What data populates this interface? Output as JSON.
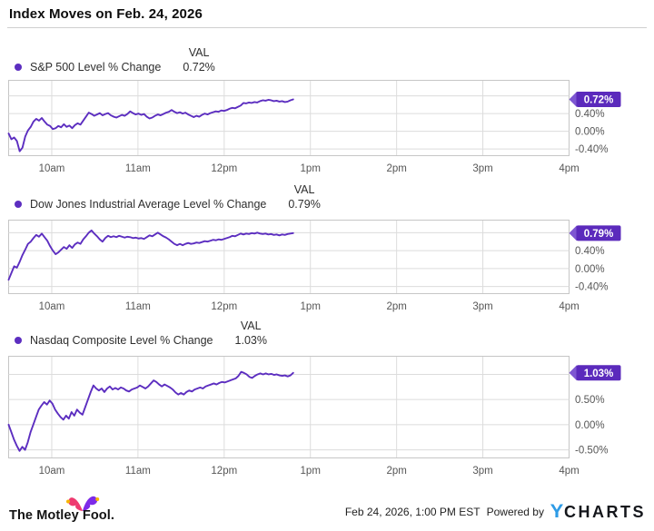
{
  "header": {
    "title": "Index Moves on Feb. 24, 2026"
  },
  "colors": {
    "line": "#5c2ec0",
    "badge_body": "#5b2abc",
    "badge_arrow": "#7e57d2",
    "badge_text": "#ffffff",
    "grid": "#dcdcdc",
    "plot_border": "#c6c6c6",
    "axis_text": "#565656",
    "legend_text": "#2e2e2e",
    "ycharts_blue": "#2e9be6",
    "fool_pink": "#ee3a70",
    "fool_purple": "#7d2ae8",
    "fool_bell_yellow": "#f7b500"
  },
  "footer": {
    "brand": "The Motley Fool.",
    "timestamp": "Feb 24, 2026, 1:00 PM EST",
    "powered_by": "Powered by",
    "ycharts_y": "Y",
    "ycharts_rest": "CHARTS"
  },
  "chart_data": [
    {
      "type": "line",
      "title": "S&P 500 Level % Change",
      "legend_val_header": "VAL",
      "value_label": "0.72%",
      "badge": "0.72%",
      "last_value": 0.72,
      "x_unit": "hour_of_day",
      "x_axis_start": 9.5,
      "x_axis_end": 16,
      "x_start": 9.5,
      "x_end": 12.8,
      "ylim": [
        -0.55,
        1.15
      ],
      "grid": true,
      "legend_position": "top-left",
      "x_ticks": [
        {
          "t": 10,
          "label": "10am"
        },
        {
          "t": 11,
          "label": "11am"
        },
        {
          "t": 12,
          "label": "12pm"
        },
        {
          "t": 13,
          "label": "1pm"
        },
        {
          "t": 14,
          "label": "2pm"
        },
        {
          "t": 15,
          "label": "3pm"
        },
        {
          "t": 16,
          "label": "4pm"
        }
      ],
      "y_gridlines": [
        {
          "v": 0.8,
          "label": "0.80%"
        },
        {
          "v": 0.4,
          "label": "0.40%"
        },
        {
          "v": 0.0,
          "label": "0.00%"
        },
        {
          "v": -0.4,
          "label": "-0.40%"
        }
      ],
      "values": [
        -0.05,
        -0.18,
        -0.14,
        -0.22,
        -0.45,
        -0.37,
        -0.12,
        0.02,
        0.1,
        0.22,
        0.28,
        0.24,
        0.3,
        0.22,
        0.15,
        0.12,
        0.05,
        0.07,
        0.12,
        0.09,
        0.16,
        0.1,
        0.13,
        0.07,
        0.14,
        0.18,
        0.15,
        0.24,
        0.33,
        0.42,
        0.39,
        0.35,
        0.38,
        0.41,
        0.36,
        0.39,
        0.41,
        0.36,
        0.33,
        0.31,
        0.34,
        0.37,
        0.35,
        0.39,
        0.45,
        0.41,
        0.38,
        0.4,
        0.37,
        0.39,
        0.33,
        0.29,
        0.31,
        0.35,
        0.38,
        0.36,
        0.39,
        0.42,
        0.44,
        0.48,
        0.44,
        0.41,
        0.43,
        0.4,
        0.42,
        0.38,
        0.35,
        0.32,
        0.35,
        0.33,
        0.37,
        0.4,
        0.38,
        0.41,
        0.43,
        0.45,
        0.44,
        0.47,
        0.46,
        0.48,
        0.51,
        0.53,
        0.52,
        0.55,
        0.58,
        0.64,
        0.63,
        0.65,
        0.64,
        0.66,
        0.65,
        0.68,
        0.7,
        0.69,
        0.71,
        0.7,
        0.68,
        0.69,
        0.67,
        0.68,
        0.66,
        0.67,
        0.7,
        0.72
      ]
    },
    {
      "type": "line",
      "title": "Dow Jones Industrial Average Level % Change",
      "legend_val_header": "VAL",
      "value_label": "0.79%",
      "badge": "0.79%",
      "last_value": 0.79,
      "x_unit": "hour_of_day",
      "x_axis_start": 9.5,
      "x_axis_end": 16,
      "x_start": 9.5,
      "x_end": 12.8,
      "ylim": [
        -0.56,
        1.08
      ],
      "grid": true,
      "legend_position": "top-left",
      "x_ticks": [
        {
          "t": 10,
          "label": "10am"
        },
        {
          "t": 11,
          "label": "11am"
        },
        {
          "t": 12,
          "label": "12pm"
        },
        {
          "t": 13,
          "label": "1pm"
        },
        {
          "t": 14,
          "label": "2pm"
        },
        {
          "t": 15,
          "label": "3pm"
        },
        {
          "t": 16,
          "label": "4pm"
        }
      ],
      "y_gridlines": [
        {
          "v": 0.8,
          "label": "0.80%"
        },
        {
          "v": 0.4,
          "label": "0.40%"
        },
        {
          "v": 0.0,
          "label": "0.00%"
        },
        {
          "v": -0.4,
          "label": "-0.40%"
        }
      ],
      "values": [
        -0.25,
        -0.1,
        0.05,
        0.02,
        0.15,
        0.3,
        0.42,
        0.55,
        0.6,
        0.68,
        0.75,
        0.71,
        0.78,
        0.7,
        0.62,
        0.5,
        0.4,
        0.32,
        0.36,
        0.42,
        0.48,
        0.44,
        0.52,
        0.46,
        0.54,
        0.58,
        0.55,
        0.65,
        0.72,
        0.8,
        0.85,
        0.78,
        0.72,
        0.65,
        0.6,
        0.68,
        0.73,
        0.7,
        0.72,
        0.7,
        0.73,
        0.71,
        0.69,
        0.71,
        0.7,
        0.68,
        0.69,
        0.67,
        0.68,
        0.66,
        0.7,
        0.74,
        0.72,
        0.76,
        0.8,
        0.76,
        0.72,
        0.69,
        0.65,
        0.6,
        0.55,
        0.52,
        0.55,
        0.52,
        0.55,
        0.57,
        0.55,
        0.56,
        0.58,
        0.57,
        0.59,
        0.61,
        0.6,
        0.62,
        0.64,
        0.63,
        0.65,
        0.64,
        0.66,
        0.68,
        0.7,
        0.73,
        0.72,
        0.75,
        0.78,
        0.76,
        0.78,
        0.77,
        0.79,
        0.78,
        0.8,
        0.78,
        0.77,
        0.78,
        0.76,
        0.77,
        0.75,
        0.76,
        0.74,
        0.76,
        0.75,
        0.77,
        0.78,
        0.79
      ]
    },
    {
      "type": "line",
      "title": "Nasdaq Composite Level % Change",
      "legend_val_header": "VAL",
      "value_label": "1.03%",
      "badge": "1.03%",
      "last_value": 1.03,
      "x_unit": "hour_of_day",
      "x_axis_start": 9.5,
      "x_axis_end": 16,
      "x_start": 9.5,
      "x_end": 12.8,
      "ylim": [
        -0.66,
        1.36
      ],
      "grid": true,
      "legend_position": "top-left",
      "x_ticks": [
        {
          "t": 10,
          "label": "10am"
        },
        {
          "t": 11,
          "label": "11am"
        },
        {
          "t": 12,
          "label": "12pm"
        },
        {
          "t": 13,
          "label": "1pm"
        },
        {
          "t": 14,
          "label": "2pm"
        },
        {
          "t": 15,
          "label": "3pm"
        },
        {
          "t": 16,
          "label": "4pm"
        }
      ],
      "y_gridlines": [
        {
          "v": 1.0,
          "label": "1.00%"
        },
        {
          "v": 0.5,
          "label": "0.50%"
        },
        {
          "v": 0.0,
          "label": "0.00%"
        },
        {
          "v": -0.5,
          "label": "-0.50%"
        }
      ],
      "values": [
        0.0,
        -0.15,
        -0.3,
        -0.42,
        -0.52,
        -0.44,
        -0.5,
        -0.35,
        -0.15,
        0.0,
        0.15,
        0.3,
        0.38,
        0.45,
        0.4,
        0.48,
        0.42,
        0.3,
        0.22,
        0.15,
        0.1,
        0.18,
        0.12,
        0.25,
        0.18,
        0.3,
        0.24,
        0.2,
        0.35,
        0.5,
        0.65,
        0.78,
        0.72,
        0.68,
        0.72,
        0.65,
        0.72,
        0.76,
        0.7,
        0.73,
        0.7,
        0.74,
        0.72,
        0.68,
        0.66,
        0.7,
        0.72,
        0.74,
        0.78,
        0.75,
        0.72,
        0.76,
        0.82,
        0.88,
        0.85,
        0.8,
        0.76,
        0.8,
        0.77,
        0.74,
        0.7,
        0.64,
        0.6,
        0.63,
        0.6,
        0.65,
        0.68,
        0.66,
        0.7,
        0.72,
        0.74,
        0.72,
        0.76,
        0.78,
        0.8,
        0.82,
        0.8,
        0.83,
        0.85,
        0.84,
        0.86,
        0.88,
        0.9,
        0.92,
        0.97,
        1.05,
        1.03,
        1.0,
        0.95,
        0.93,
        0.97,
        1.0,
        1.02,
        1.0,
        1.02,
        1.0,
        1.01,
        0.99,
        1.0,
        0.98,
        0.97,
        0.98,
        0.96,
        0.98,
        1.03
      ]
    }
  ]
}
